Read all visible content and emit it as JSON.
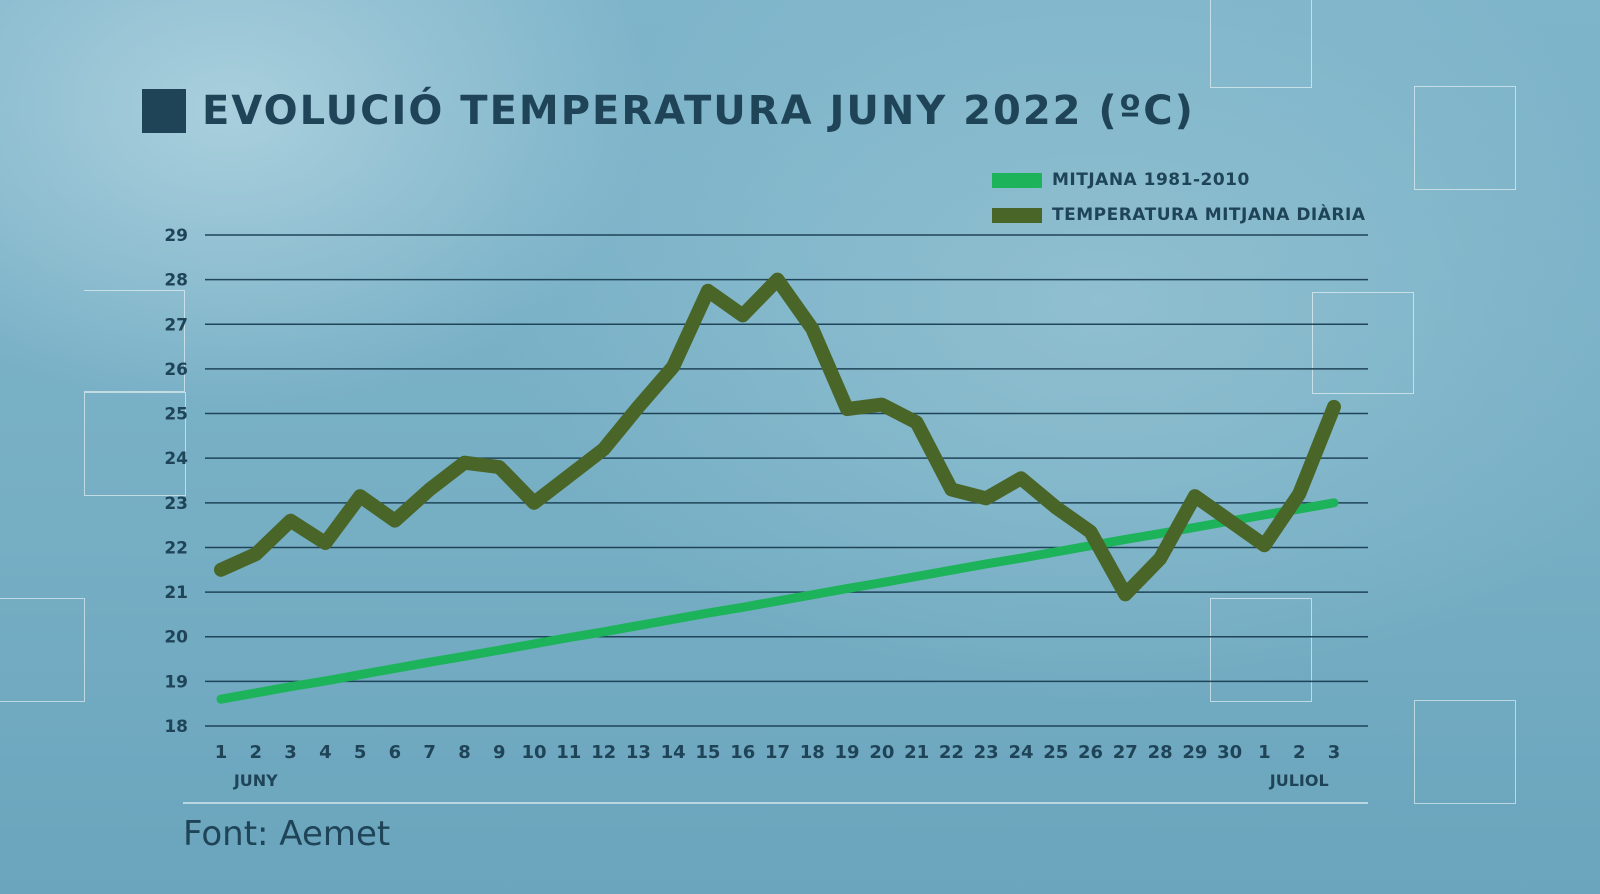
{
  "title": "EVOLUCIÓ TEMPERATURA JUNY 2022 (ºC)",
  "source": "Font: Aemet",
  "colors": {
    "mean_1981_2010": "#1db35a",
    "daily_mean": "#4a6528",
    "grid": "#1f4458",
    "title": "#1f4458"
  },
  "chart_data": {
    "type": "line",
    "title": "EVOLUCIÓ TEMPERATURA JUNY 2022 (ºC)",
    "xlabel": "",
    "ylabel": "",
    "ylim": [
      18,
      29
    ],
    "yticks": [
      "18",
      "19",
      "20",
      "21",
      "22",
      "23",
      "24",
      "25",
      "26",
      "27",
      "28",
      "29"
    ],
    "grid": true,
    "legend_position": "top-right",
    "categories": [
      "1",
      "2",
      "3",
      "4",
      "5",
      "6",
      "7",
      "8",
      "9",
      "10",
      "11",
      "12",
      "13",
      "14",
      "15",
      "16",
      "17",
      "18",
      "19",
      "20",
      "21",
      "22",
      "23",
      "24",
      "25",
      "26",
      "27",
      "28",
      "29",
      "30",
      "1",
      "2",
      "3"
    ],
    "month_labels": [
      {
        "label": "JUNY",
        "at_index": 1
      },
      {
        "label": "JULIOL",
        "at_index": 31
      }
    ],
    "series": [
      {
        "name": "MITJANA 1981-2010",
        "color": "#1db35a",
        "values": [
          18.6,
          18.74,
          18.88,
          19.01,
          19.15,
          19.29,
          19.43,
          19.56,
          19.7,
          19.84,
          19.98,
          20.11,
          20.25,
          20.39,
          20.53,
          20.66,
          20.8,
          20.94,
          21.08,
          21.21,
          21.35,
          21.49,
          21.63,
          21.76,
          21.9,
          22.04,
          22.18,
          22.31,
          22.45,
          22.59,
          22.73,
          22.86,
          23.0
        ]
      },
      {
        "name": "TEMPERATURA MITJANA DIÀRIA",
        "color": "#4a6528",
        "values": [
          21.5,
          21.85,
          22.6,
          22.1,
          23.15,
          22.6,
          23.3,
          23.9,
          23.8,
          23.0,
          23.6,
          24.2,
          25.15,
          26.05,
          27.75,
          27.2,
          28.0,
          26.9,
          25.1,
          25.2,
          24.8,
          23.3,
          23.1,
          23.55,
          22.9,
          22.35,
          20.95,
          21.75,
          23.15,
          22.6,
          22.05,
          23.2,
          25.15
        ]
      }
    ]
  }
}
